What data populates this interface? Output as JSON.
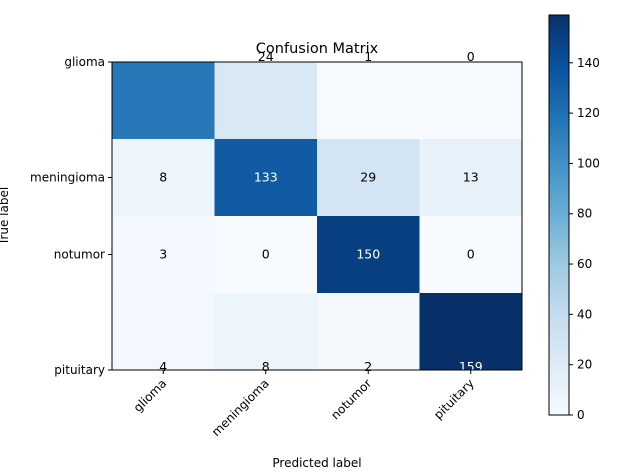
{
  "chart_data": {
    "type": "heatmap",
    "title": "Confusion Matrix",
    "xlabel": "Predicted label",
    "ylabel": "True label",
    "x_categories": [
      "glioma",
      "meningioma",
      "notumor",
      "pituitary"
    ],
    "y_categories": [
      "glioma",
      "meningioma",
      "notumor",
      "pituitary"
    ],
    "matrix": [
      [
        null,
        24,
        1,
        0
      ],
      [
        8,
        133,
        29,
        13
      ],
      [
        3,
        0,
        150,
        0
      ],
      [
        4,
        8,
        2,
        159
      ]
    ],
    "matrix_estimated": {
      "0-0": 115
    },
    "colorbar": {
      "min": 0,
      "max": 159,
      "ticks": [
        0,
        20,
        40,
        60,
        80,
        100,
        120,
        140
      ],
      "colormap": "Blues"
    },
    "grid": false
  }
}
